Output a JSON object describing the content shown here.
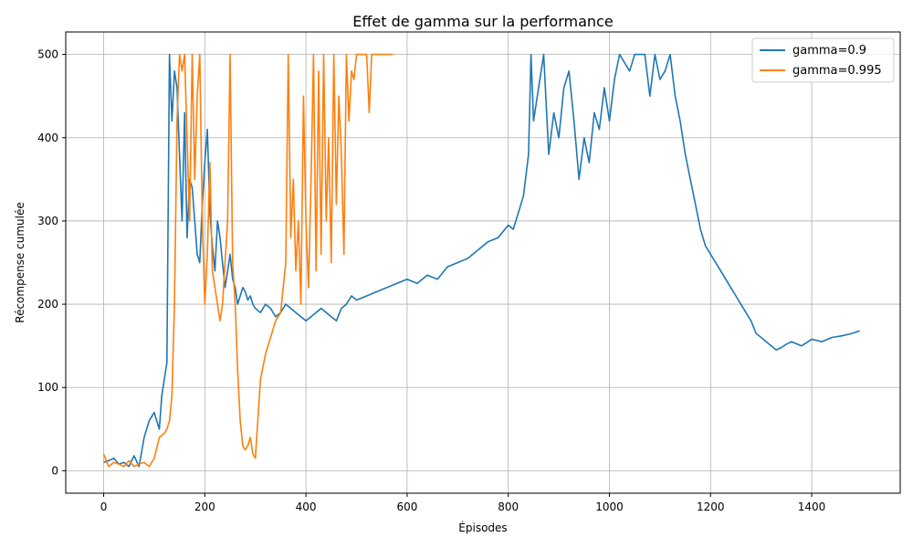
{
  "chart_data": {
    "type": "line",
    "title": "Effet de gamma sur la performance",
    "xlabel": "Épisodes",
    "ylabel": "Récompense cumulée",
    "xlim": [
      -75,
      1575
    ],
    "ylim": [
      -27,
      527
    ],
    "xticks": [
      0,
      200,
      400,
      600,
      800,
      1000,
      1200,
      1400
    ],
    "yticks": [
      0,
      100,
      200,
      300,
      400,
      500
    ],
    "grid": true,
    "legend": "top-right",
    "series": [
      {
        "name": "gamma=0.9",
        "color": "#1f77b4",
        "x": [
          0,
          10,
          20,
          30,
          40,
          50,
          60,
          70,
          80,
          90,
          100,
          110,
          115,
          120,
          125,
          130,
          135,
          140,
          145,
          150,
          155,
          160,
          165,
          170,
          175,
          180,
          185,
          190,
          195,
          200,
          205,
          210,
          215,
          220,
          225,
          230,
          235,
          240,
          245,
          250,
          255,
          260,
          265,
          270,
          275,
          280,
          285,
          290,
          295,
          300,
          310,
          320,
          330,
          340,
          350,
          360,
          370,
          380,
          390,
          400,
          410,
          420,
          430,
          440,
          450,
          460,
          470,
          480,
          490,
          500,
          520,
          540,
          560,
          580,
          600,
          620,
          640,
          660,
          680,
          700,
          720,
          740,
          760,
          780,
          800,
          810,
          820,
          830,
          840,
          845,
          850,
          860,
          870,
          880,
          890,
          900,
          910,
          920,
          930,
          940,
          950,
          960,
          970,
          980,
          990,
          1000,
          1010,
          1020,
          1030,
          1040,
          1050,
          1060,
          1070,
          1080,
          1090,
          1100,
          1110,
          1120,
          1130,
          1140,
          1150,
          1160,
          1170,
          1180,
          1190,
          1200,
          1210,
          1220,
          1230,
          1240,
          1250,
          1260,
          1270,
          1280,
          1290,
          1300,
          1310,
          1320,
          1330,
          1340,
          1350,
          1360,
          1380,
          1400,
          1420,
          1440,
          1460,
          1480,
          1495
        ],
        "y": [
          10,
          12,
          15,
          8,
          10,
          5,
          18,
          5,
          40,
          60,
          70,
          50,
          90,
          110,
          130,
          500,
          420,
          480,
          460,
          380,
          300,
          430,
          280,
          350,
          340,
          300,
          260,
          250,
          320,
          370,
          410,
          310,
          270,
          240,
          300,
          280,
          250,
          220,
          240,
          260,
          230,
          220,
          200,
          210,
          220,
          215,
          205,
          210,
          200,
          195,
          190,
          200,
          195,
          185,
          190,
          200,
          195,
          190,
          185,
          180,
          185,
          190,
          195,
          190,
          185,
          180,
          195,
          200,
          210,
          205,
          210,
          215,
          220,
          225,
          230,
          225,
          235,
          230,
          245,
          250,
          255,
          265,
          275,
          280,
          295,
          290,
          310,
          330,
          380,
          500,
          420,
          460,
          500,
          380,
          430,
          400,
          460,
          480,
          420,
          350,
          400,
          370,
          430,
          410,
          460,
          420,
          470,
          500,
          490,
          480,
          500,
          500,
          500,
          450,
          500,
          470,
          480,
          500,
          450,
          420,
          380,
          350,
          320,
          290,
          270,
          260,
          250,
          240,
          230,
          220,
          210,
          200,
          190,
          180,
          165,
          160,
          155,
          150,
          145,
          148,
          152,
          155,
          150,
          158,
          155,
          160,
          162,
          165,
          168
        ]
      },
      {
        "name": "gamma=0.995",
        "color": "#ff7f0e",
        "x": [
          0,
          10,
          20,
          30,
          40,
          50,
          60,
          70,
          80,
          90,
          100,
          110,
          120,
          125,
          130,
          135,
          140,
          145,
          150,
          155,
          160,
          165,
          170,
          175,
          180,
          185,
          190,
          195,
          200,
          205,
          210,
          215,
          220,
          225,
          230,
          235,
          240,
          245,
          250,
          255,
          260,
          265,
          270,
          275,
          280,
          285,
          290,
          295,
          300,
          310,
          320,
          330,
          340,
          350,
          360,
          365,
          370,
          375,
          380,
          385,
          390,
          395,
          400,
          405,
          410,
          415,
          420,
          425,
          430,
          435,
          440,
          445,
          450,
          455,
          460,
          465,
          470,
          475,
          480,
          485,
          490,
          495,
          500,
          510,
          520,
          525,
          530,
          540,
          550,
          560,
          572
        ],
        "y": [
          20,
          5,
          10,
          8,
          5,
          12,
          5,
          8,
          10,
          5,
          15,
          40,
          45,
          50,
          60,
          90,
          200,
          420,
          500,
          480,
          500,
          400,
          300,
          500,
          350,
          450,
          500,
          300,
          200,
          260,
          370,
          240,
          220,
          200,
          180,
          200,
          250,
          300,
          500,
          250,
          200,
          120,
          60,
          30,
          25,
          30,
          40,
          20,
          15,
          110,
          140,
          160,
          180,
          190,
          250,
          500,
          280,
          350,
          240,
          300,
          200,
          450,
          300,
          220,
          350,
          500,
          240,
          480,
          260,
          500,
          300,
          400,
          250,
          500,
          320,
          450,
          380,
          260,
          500,
          420,
          480,
          470,
          500,
          500,
          500,
          430,
          500,
          500,
          500,
          500,
          500
        ]
      }
    ]
  }
}
